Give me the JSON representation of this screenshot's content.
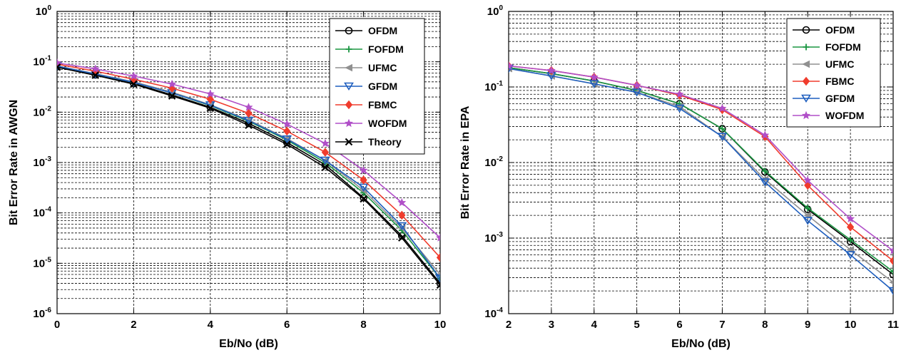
{
  "chart_data": [
    {
      "type": "line",
      "xlabel": "Eb/No (dB)",
      "ylabel": "Bit Error Rate in AWGN",
      "xlim": [
        0,
        10
      ],
      "ylim": [
        1e-06,
        1
      ],
      "yscale": "log",
      "grid": true,
      "legend_position": "top-right",
      "xticks": [
        "0",
        "2",
        "4",
        "6",
        "8",
        "10"
      ],
      "x": [
        0,
        1,
        2,
        3,
        4,
        5,
        6,
        7,
        8,
        9,
        10
      ],
      "series": [
        {
          "name": "OFDM",
          "color": "#000000",
          "marker": "circle",
          "values": [
            0.08,
            0.055,
            0.037,
            0.022,
            0.0125,
            0.006,
            0.0025,
            0.0009,
            0.0002,
            3.5e-05,
            4e-06
          ]
        },
        {
          "name": "FOFDM",
          "color": "#1a9641",
          "marker": "plus",
          "values": [
            0.082,
            0.057,
            0.039,
            0.024,
            0.0135,
            0.0066,
            0.0028,
            0.001,
            0.00025,
            4.5e-05,
            5e-06
          ]
        },
        {
          "name": "UFMC",
          "color": "#909090",
          "marker": "triangle-left",
          "values": [
            0.083,
            0.058,
            0.04,
            0.025,
            0.014,
            0.007,
            0.003,
            0.0011,
            0.00028,
            5e-05,
            6e-06
          ]
        },
        {
          "name": "GFDM",
          "color": "#1f5fbf",
          "marker": "triangle-down",
          "values": [
            0.082,
            0.057,
            0.039,
            0.024,
            0.0138,
            0.0068,
            0.0029,
            0.0011,
            0.00032,
            5.5e-05,
            5e-06
          ]
        },
        {
          "name": "FBMC",
          "color": "#f03c2d",
          "marker": "diamond",
          "values": [
            0.09,
            0.065,
            0.045,
            0.03,
            0.018,
            0.0095,
            0.0042,
            0.0016,
            0.00045,
            9e-05,
            1.3e-05
          ]
        },
        {
          "name": "WOFDM",
          "color": "#b04fc8",
          "marker": "star",
          "values": [
            0.095,
            0.072,
            0.052,
            0.036,
            0.023,
            0.0125,
            0.0058,
            0.0024,
            0.0007,
            0.00016,
            3.2e-05
          ]
        },
        {
          "name": "Theory",
          "color": "#000000",
          "marker": "x",
          "values": [
            0.078,
            0.054,
            0.036,
            0.021,
            0.012,
            0.0055,
            0.0023,
            0.0008,
            0.00019,
            3.2e-05,
            3.7e-06
          ]
        }
      ]
    },
    {
      "type": "line",
      "xlabel": "Eb/No (dB)",
      "ylabel": "Bit Error Rate in EPA",
      "xlim": [
        2,
        11
      ],
      "ylim": [
        0.0001,
        1
      ],
      "yscale": "log",
      "grid": true,
      "legend_position": "top-right",
      "xticks": [
        "2",
        "3",
        "4",
        "5",
        "6",
        "7",
        "8",
        "9",
        "10",
        "11"
      ],
      "x": [
        2,
        3,
        4,
        5,
        6,
        7,
        8,
        9,
        10,
        11
      ],
      "series": [
        {
          "name": "OFDM",
          "color": "#000000",
          "marker": "circle",
          "values": [
            0.18,
            0.15,
            0.12,
            0.09,
            0.06,
            0.028,
            0.0075,
            0.0024,
            0.0009,
            0.00033
          ]
        },
        {
          "name": "FOFDM",
          "color": "#1a9641",
          "marker": "plus",
          "values": [
            0.18,
            0.15,
            0.12,
            0.09,
            0.06,
            0.028,
            0.0077,
            0.0025,
            0.00095,
            0.00036
          ]
        },
        {
          "name": "UFMC",
          "color": "#909090",
          "marker": "triangle-left",
          "values": [
            0.175,
            0.14,
            0.11,
            0.085,
            0.055,
            0.022,
            0.006,
            0.002,
            0.0007,
            0.00026
          ]
        },
        {
          "name": "FBMC",
          "color": "#f03c2d",
          "marker": "diamond",
          "values": [
            0.19,
            0.165,
            0.135,
            0.105,
            0.078,
            0.05,
            0.022,
            0.005,
            0.0014,
            0.0005
          ]
        },
        {
          "name": "GFDM",
          "color": "#1f5fbf",
          "marker": "triangle-down",
          "values": [
            0.175,
            0.14,
            0.11,
            0.085,
            0.052,
            0.022,
            0.0055,
            0.0017,
            0.0006,
            0.0002
          ]
        },
        {
          "name": "WOFDM",
          "color": "#b04fc8",
          "marker": "star",
          "values": [
            0.19,
            0.165,
            0.135,
            0.105,
            0.08,
            0.052,
            0.023,
            0.0058,
            0.0018,
            0.00068
          ]
        }
      ]
    }
  ]
}
